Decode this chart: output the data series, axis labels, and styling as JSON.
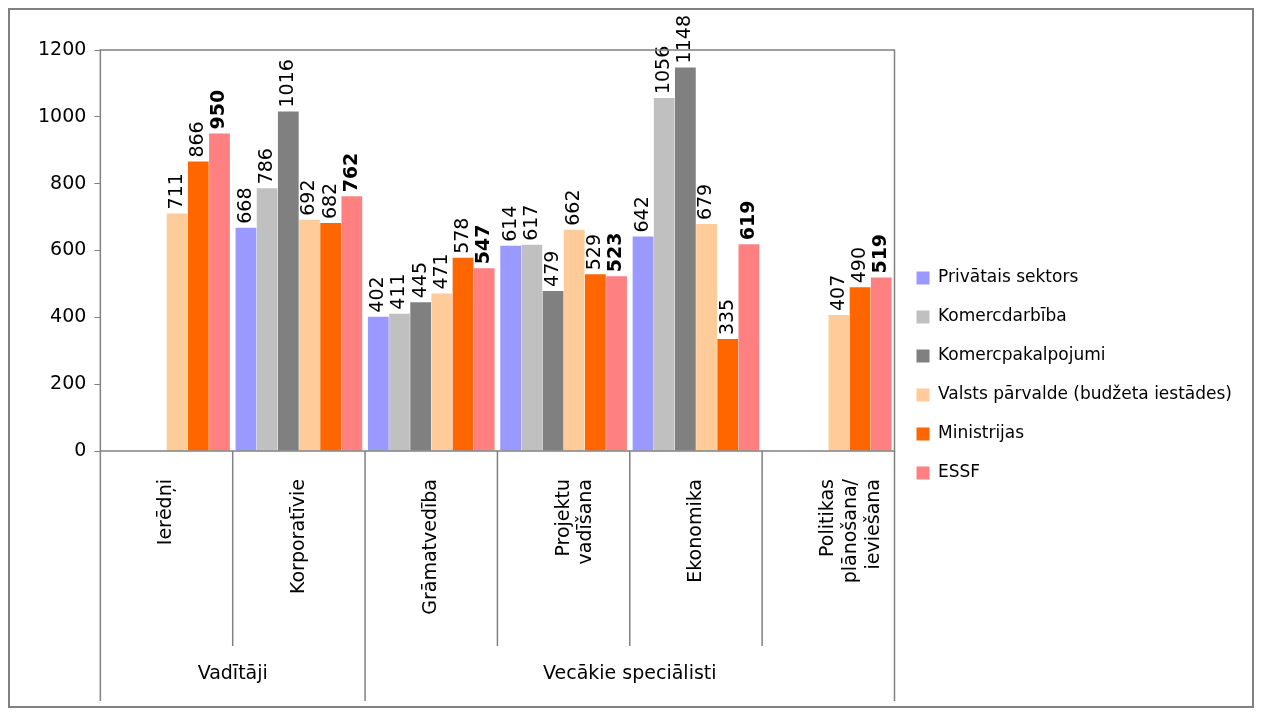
{
  "chart_data": {
    "type": "bar",
    "categories": [
      "Ierēdņi",
      "Korporatīvie",
      "Grāmatvedība",
      "Projektu vadīšana",
      "Ekonomika",
      "Politikas plānošana/ ieviešana"
    ],
    "series": [
      {
        "name": "Privātais sektors",
        "color": "#9999ff",
        "values": [
          null,
          668,
          402,
          614,
          642,
          null
        ]
      },
      {
        "name": "Komercdarbība",
        "color": "#c0c0c0",
        "values": [
          null,
          786,
          411,
          617,
          1056,
          null
        ]
      },
      {
        "name": "Komercpakalpojumi",
        "color": "#808080",
        "values": [
          null,
          1016,
          445,
          479,
          1148,
          null
        ]
      },
      {
        "name": "Valsts pārvalde (budžeta iestādes)",
        "color": "#ffcc99",
        "values": [
          711,
          692,
          471,
          662,
          679,
          407
        ]
      },
      {
        "name": "Ministrijas",
        "color": "#ff6600",
        "values": [
          866,
          682,
          578,
          529,
          335,
          490
        ]
      },
      {
        "name": "ESSF",
        "color": "#ff8080",
        "values": [
          950,
          762,
          547,
          523,
          619,
          519
        ]
      }
    ],
    "annotations": [
      "Vadītāji",
      "Vecākie speciālisti"
    ],
    "ylim": [
      0,
      1200
    ],
    "yticks": [
      0,
      200,
      400,
      600,
      800,
      1000,
      1200
    ],
    "grid": false,
    "legend": "right",
    "data_labels": true
  }
}
